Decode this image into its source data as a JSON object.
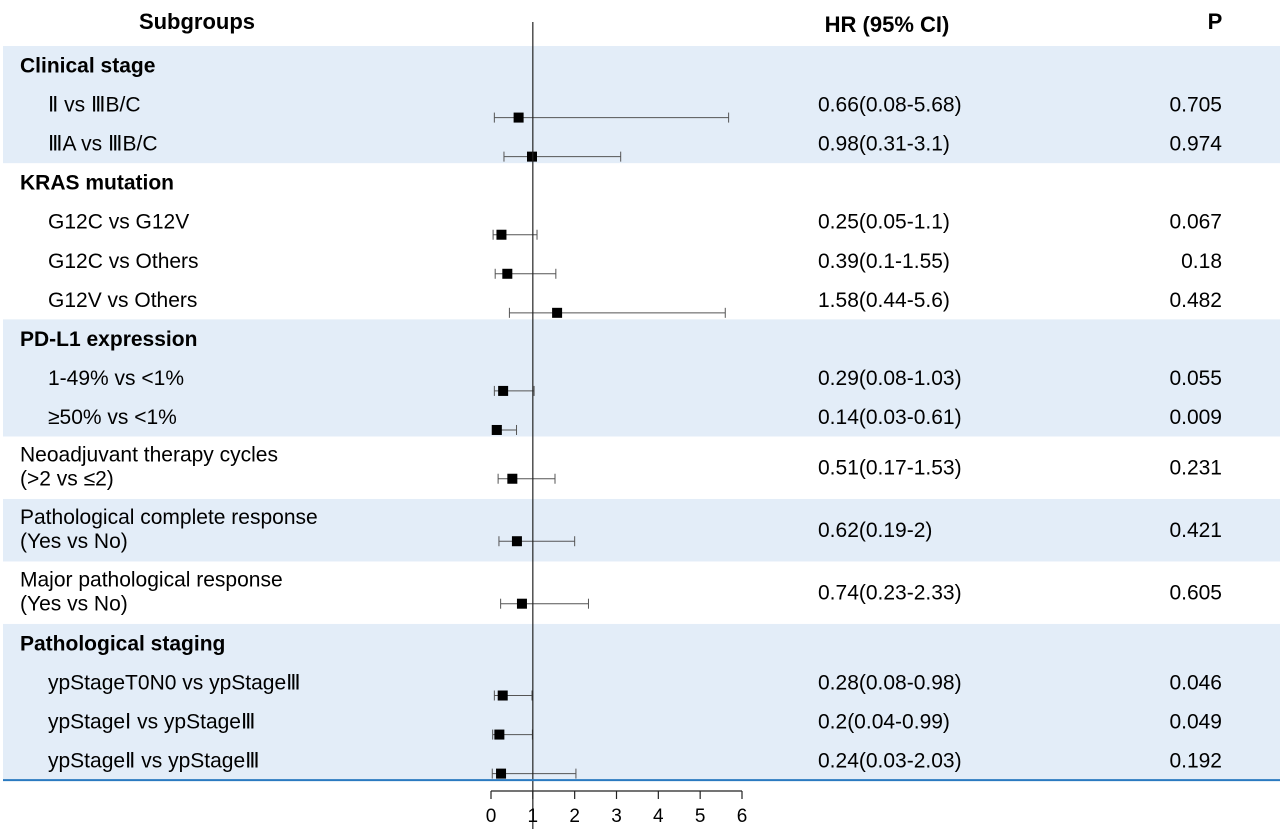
{
  "chart_data": {
    "type": "forest",
    "headers": {
      "subgroups": "Subgroups",
      "hr": "HR (95% CI)",
      "p": "P"
    },
    "rows": [
      {
        "kind": "group",
        "label": "Clinical stage",
        "shaded": true
      },
      {
        "kind": "item",
        "label": "Ⅱ vs ⅢB/C",
        "hr": 0.66,
        "lo": 0.08,
        "hi": 5.68,
        "hr_text": "0.66(0.08-5.68)",
        "p": "0.705",
        "shaded": true
      },
      {
        "kind": "item",
        "label": "ⅢA vs ⅢB/C",
        "hr": 0.98,
        "lo": 0.31,
        "hi": 3.1,
        "hr_text": "0.98(0.31-3.1)",
        "p": "0.974",
        "shaded": true
      },
      {
        "kind": "group",
        "label": "KRAS mutation",
        "shaded": false
      },
      {
        "kind": "item",
        "label": "G12C vs G12V",
        "hr": 0.25,
        "lo": 0.05,
        "hi": 1.1,
        "hr_text": "0.25(0.05-1.1)",
        "p": "0.067",
        "shaded": false
      },
      {
        "kind": "item",
        "label": "G12C vs Others",
        "hr": 0.39,
        "lo": 0.1,
        "hi": 1.55,
        "hr_text": "0.39(0.1-1.55)",
        "p": "0.18",
        "shaded": false
      },
      {
        "kind": "item",
        "label": "G12V vs Others",
        "hr": 1.58,
        "lo": 0.44,
        "hi": 5.6,
        "hr_text": "1.58(0.44-5.6)",
        "p": "0.482",
        "shaded": false
      },
      {
        "kind": "group",
        "label": "PD-L1 expression",
        "shaded": true
      },
      {
        "kind": "item",
        "label": "1-49% vs <1%",
        "hr": 0.29,
        "lo": 0.08,
        "hi": 1.03,
        "hr_text": "0.29(0.08-1.03)",
        "p": "0.055",
        "shaded": true
      },
      {
        "kind": "item",
        "label": "≥50% vs <1%",
        "hr": 0.14,
        "lo": 0.03,
        "hi": 0.61,
        "hr_text": "0.14(0.03-0.61)",
        "p": "0.009",
        "shaded": true
      },
      {
        "kind": "double",
        "label": [
          "Neoadjuvant therapy cycles",
          "(>2 vs ≤2)"
        ],
        "hr": 0.51,
        "lo": 0.17,
        "hi": 1.53,
        "hr_text": "0.51(0.17-1.53)",
        "p": "0.231",
        "shaded": false
      },
      {
        "kind": "double",
        "label": [
          "Pathological complete response",
          "(Yes vs No)"
        ],
        "hr": 0.62,
        "lo": 0.19,
        "hi": 2.0,
        "hr_text": "0.62(0.19-2)",
        "p": "0.421",
        "shaded": true
      },
      {
        "kind": "double",
        "label": [
          "Major pathological response",
          " (Yes vs No)"
        ],
        "hr": 0.74,
        "lo": 0.23,
        "hi": 2.33,
        "hr_text": "0.74(0.23-2.33)",
        "p": "0.605",
        "shaded": false
      },
      {
        "kind": "group",
        "label": "Pathological staging",
        "shaded": true
      },
      {
        "kind": "item",
        "label": "ypStageT0N0 vs ypStageⅢ",
        "hr": 0.28,
        "lo": 0.08,
        "hi": 0.98,
        "hr_text": "0.28(0.08-0.98)",
        "p": "0.046",
        "shaded": true
      },
      {
        "kind": "item",
        "label": "ypStageⅠ vs ypStageⅢ",
        "hr": 0.2,
        "lo": 0.04,
        "hi": 0.99,
        "hr_text": "0.2(0.04-0.99)",
        "p": "0.049",
        "shaded": true
      },
      {
        "kind": "item",
        "label": "ypStageⅡ vs ypStageⅢ",
        "hr": 0.24,
        "lo": 0.03,
        "hi": 2.03,
        "hr_text": "0.24(0.03-2.03)",
        "p": "0.192",
        "shaded": true
      }
    ],
    "x_ticks": [
      0,
      1,
      2,
      3,
      4,
      5,
      6
    ],
    "xlim": [
      0,
      6
    ],
    "reference_line": 1,
    "colors": {
      "shade": "#e3edf8",
      "axis": "#222222",
      "bottom_rule": "#2a7ac0",
      "marker": "#000000"
    }
  }
}
